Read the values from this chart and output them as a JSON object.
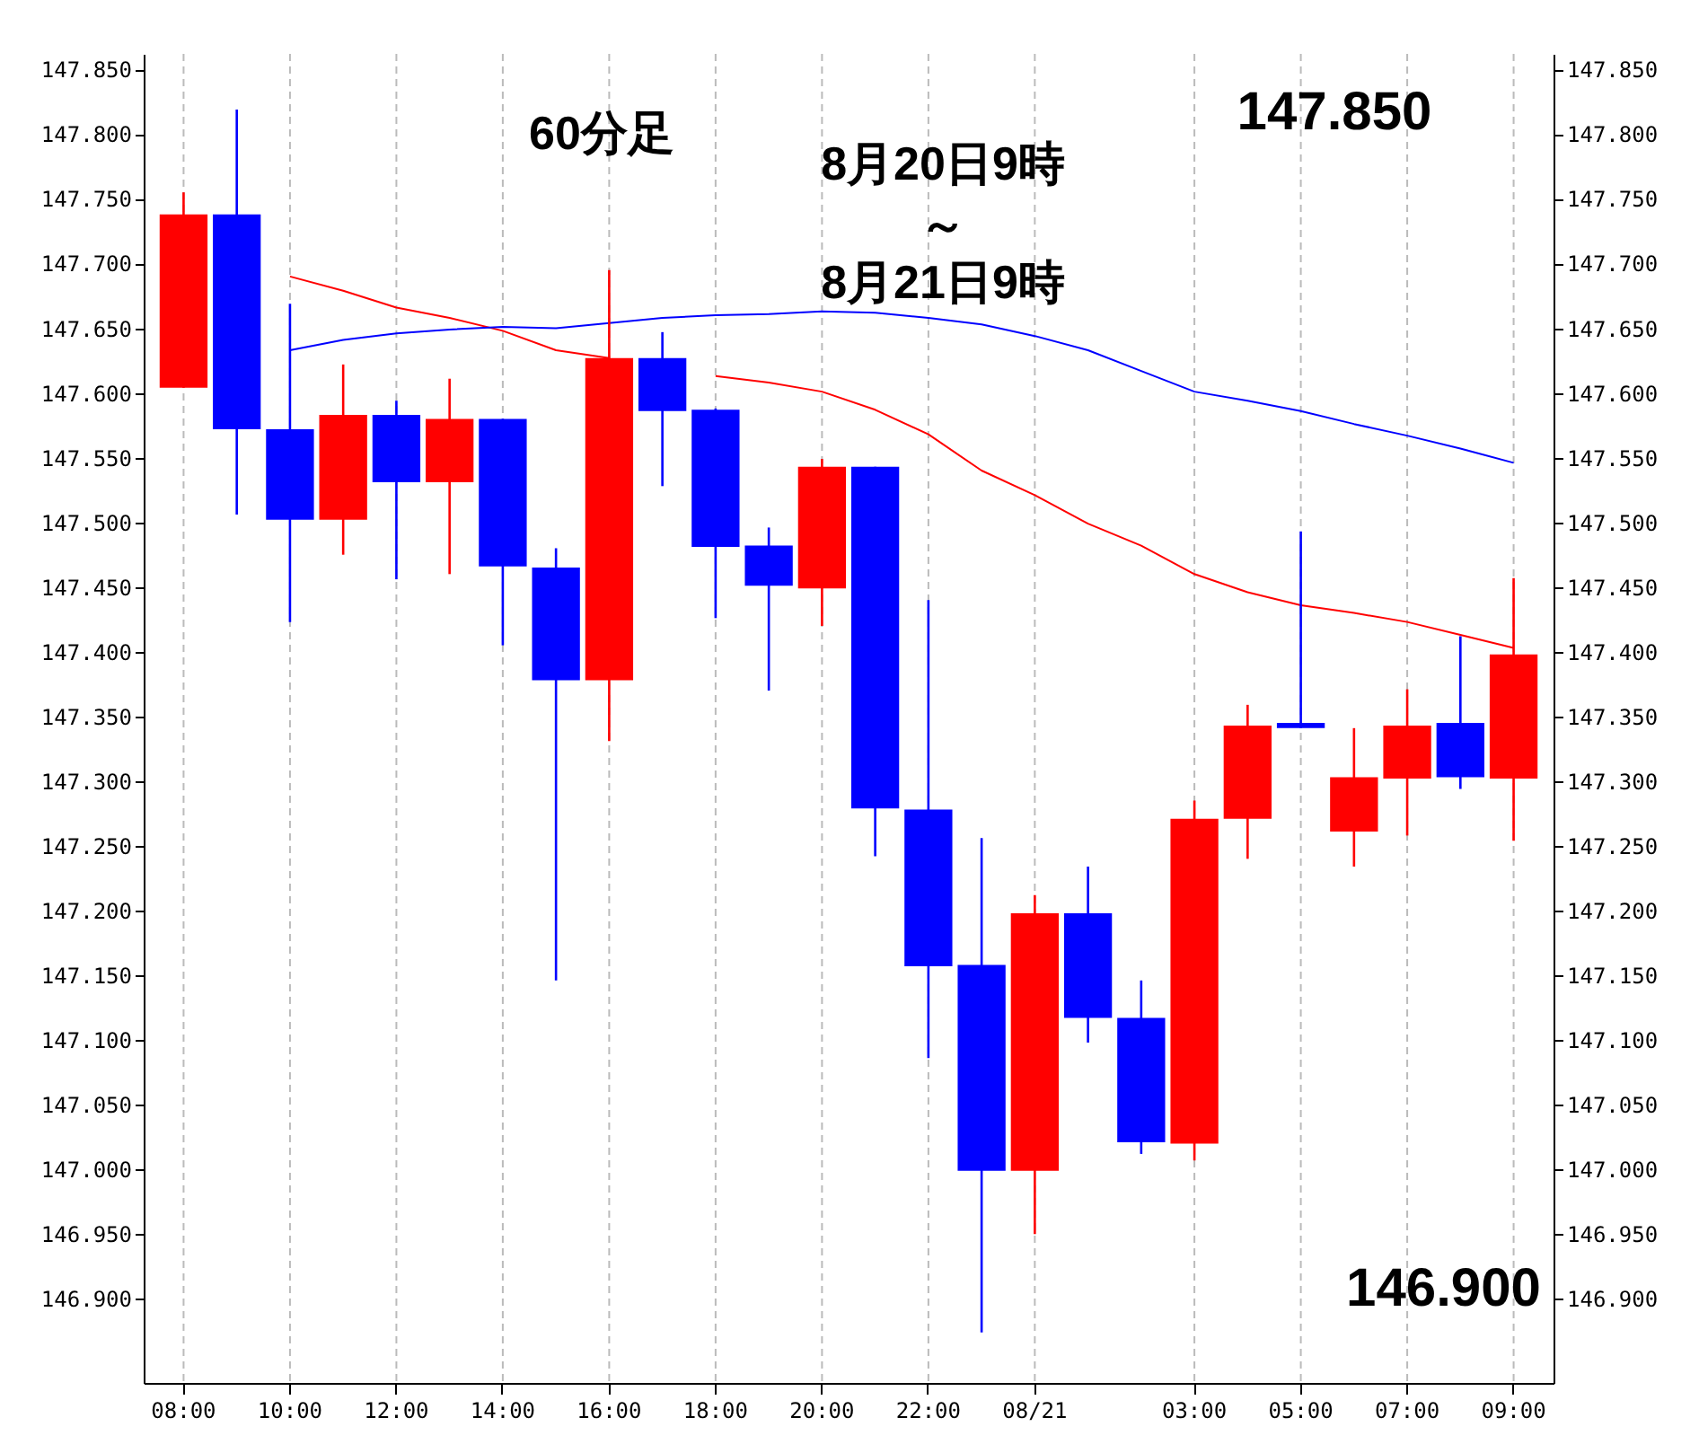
{
  "chart_data": {
    "type": "candlestick",
    "categories": [
      "08:00",
      null,
      "10:00",
      null,
      "12:00",
      null,
      "14:00",
      null,
      "16:00",
      null,
      "18:00",
      null,
      "20:00",
      null,
      "22:00",
      null,
      "08/21",
      null,
      null,
      "03:00",
      null,
      "05:00",
      null,
      "07:00",
      null,
      "09:00"
    ],
    "ohlc": [
      [
        147.604,
        147.755,
        147.604,
        147.738
      ],
      [
        147.738,
        147.819,
        147.506,
        147.572
      ],
      [
        147.572,
        147.669,
        147.423,
        147.502
      ],
      [
        147.502,
        147.622,
        147.475,
        147.583
      ],
      [
        147.583,
        147.594,
        147.456,
        147.531
      ],
      [
        147.531,
        147.611,
        147.46,
        147.58
      ],
      [
        147.58,
        147.58,
        147.405,
        147.466
      ],
      [
        147.465,
        147.48,
        147.146,
        147.378
      ],
      [
        147.378,
        147.695,
        147.331,
        147.627
      ],
      [
        147.627,
        147.647,
        147.528,
        147.586
      ],
      [
        147.587,
        147.588,
        147.426,
        147.481
      ],
      [
        147.482,
        147.496,
        147.37,
        147.451
      ],
      [
        147.449,
        147.549,
        147.42,
        147.543
      ],
      [
        147.543,
        147.543,
        147.242,
        147.279
      ],
      [
        147.278,
        147.44,
        147.086,
        147.157
      ],
      [
        147.158,
        147.256,
        146.874,
        146.999
      ],
      [
        146.999,
        147.212,
        146.95,
        147.198
      ],
      [
        147.198,
        147.234,
        147.098,
        147.117
      ],
      [
        147.117,
        147.146,
        147.012,
        147.021
      ],
      [
        147.02,
        147.285,
        147.007,
        147.271
      ],
      [
        147.271,
        147.359,
        147.24,
        147.343
      ],
      [
        147.345,
        147.493,
        147.341,
        147.341
      ],
      [
        147.261,
        147.341,
        147.234,
        147.303
      ],
      [
        147.302,
        147.371,
        147.258,
        147.343
      ],
      [
        147.345,
        147.412,
        147.294,
        147.303
      ],
      [
        147.302,
        147.457,
        147.254,
        147.398
      ]
    ],
    "colors": [
      "#ff0000",
      "#0000ff",
      "#0000ff",
      "#ff0000",
      "#0000ff",
      "#ff0000",
      "#0000ff",
      "#0000ff",
      "#ff0000",
      "#0000ff",
      "#0000ff",
      "#0000ff",
      "#ff0000",
      "#0000ff",
      "#0000ff",
      "#0000ff",
      "#ff0000",
      "#0000ff",
      "#0000ff",
      "#ff0000",
      "#ff0000",
      "#0000ff",
      "#ff0000",
      "#ff0000",
      "#0000ff",
      "#ff0000"
    ],
    "series": [
      {
        "type": "line",
        "color": "#ff0000",
        "values": [
          null,
          null,
          147.69,
          147.679,
          147.666,
          147.658,
          147.648,
          147.633,
          147.627,
          null,
          147.613,
          147.608,
          147.601,
          147.587,
          147.568,
          147.54,
          147.521,
          147.499,
          147.482,
          147.46,
          147.446,
          147.436,
          147.43,
          147.423,
          147.413,
          147.403
        ]
      },
      {
        "type": "line",
        "color": "#0000ff",
        "values": [
          null,
          null,
          147.633,
          147.641,
          147.646,
          147.649,
          147.651,
          147.65,
          147.654,
          147.658,
          147.66,
          147.661,
          147.663,
          147.662,
          147.658,
          147.653,
          147.644,
          147.633,
          147.617,
          147.601,
          147.594,
          147.586,
          147.576,
          147.567,
          147.557,
          147.546
        ]
      }
    ],
    "ylim": [
      146.835,
      147.862
    ],
    "yticks": [
      {
        "value": 146.9,
        "label": "146.900"
      },
      {
        "value": 146.95,
        "label": "146.950"
      },
      {
        "value": 147.0,
        "label": "147.000"
      },
      {
        "value": 147.05,
        "label": "147.050"
      },
      {
        "value": 147.1,
        "label": "147.100"
      },
      {
        "value": 147.15,
        "label": "147.150"
      },
      {
        "value": 147.2,
        "label": "147.200"
      },
      {
        "value": 147.25,
        "label": "147.250"
      },
      {
        "value": 147.3,
        "label": "147.300"
      },
      {
        "value": 147.35,
        "label": "147.350"
      },
      {
        "value": 147.4,
        "label": "147.400"
      },
      {
        "value": 147.45,
        "label": "147.450"
      },
      {
        "value": 147.5,
        "label": "147.500"
      },
      {
        "value": 147.55,
        "label": "147.550"
      },
      {
        "value": 147.6,
        "label": "147.600"
      },
      {
        "value": 147.65,
        "label": "147.650"
      },
      {
        "value": 147.7,
        "label": "147.700"
      },
      {
        "value": 147.75,
        "label": "147.750"
      },
      {
        "value": 147.8,
        "label": "147.800"
      },
      {
        "value": 147.85,
        "label": "147.850"
      }
    ],
    "y2lim": [
      146.835,
      147.862
    ],
    "y2ticks": [
      {
        "value": 146.9,
        "label": "146.900"
      },
      {
        "value": 146.95,
        "label": "146.950"
      },
      {
        "value": 147.0,
        "label": "147.000"
      },
      {
        "value": 147.05,
        "label": "147.050"
      },
      {
        "value": 147.1,
        "label": "147.100"
      },
      {
        "value": 147.15,
        "label": "147.150"
      },
      {
        "value": 147.2,
        "label": "147.200"
      },
      {
        "value": 147.25,
        "label": "147.250"
      },
      {
        "value": 147.3,
        "label": "147.300"
      },
      {
        "value": 147.35,
        "label": "147.350"
      },
      {
        "value": 147.4,
        "label": "147.400"
      },
      {
        "value": 147.45,
        "label": "147.450"
      },
      {
        "value": 147.5,
        "label": "147.500"
      },
      {
        "value": 147.55,
        "label": "147.550"
      },
      {
        "value": 147.6,
        "label": "147.600"
      },
      {
        "value": 147.65,
        "label": "147.650"
      },
      {
        "value": 147.7,
        "label": "147.700"
      },
      {
        "value": 147.75,
        "label": "147.750"
      },
      {
        "value": 147.8,
        "label": "147.800"
      },
      {
        "value": 147.85,
        "label": "147.850"
      }
    ],
    "grid": "x",
    "annotations": [
      "60分足",
      "8月20日9時",
      "～",
      "8月21日9時",
      "147.850",
      "146.900"
    ]
  }
}
